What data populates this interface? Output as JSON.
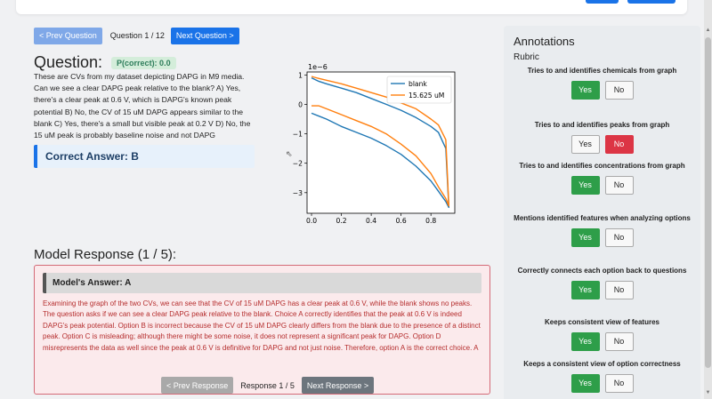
{
  "question_nav": {
    "prev_label": "< Prev Question",
    "counter": "Question 1 / 12",
    "next_label": "Next Question >"
  },
  "question": {
    "heading": "Question:",
    "p_correct": "P(correct): 0.0",
    "text": "These are CVs from my dataset depicting DAPG in M9 media. Can we see a clear DAPG peak relative to the blank? A) Yes, there's a clear peak at 0.6 V, which is DAPG's known peak potential B) No, the CV of 15 uM DAPG appears similar to the blank C) Yes, there's a small but visible peak at 0.2 V D) No, the 15 uM peak is probably baseline noise and not DAPG",
    "correct_answer": "Correct Answer: B"
  },
  "chart_data": {
    "type": "line",
    "offset_label": "1e−6",
    "xlim": [
      -0.03,
      0.96
    ],
    "ylim": [
      -3.7,
      1.1
    ],
    "x_ticks": [
      "0.0",
      "0.2",
      "0.4",
      "0.6",
      "0.8"
    ],
    "y_ticks": [
      "1",
      "0",
      "−1",
      "−2",
      "−3"
    ],
    "legend_position": "top-right",
    "series": [
      {
        "name": "blank",
        "color": "#1f77b4",
        "x": [
          0.0,
          0.05,
          0.1,
          0.2,
          0.3,
          0.4,
          0.5,
          0.6,
          0.7,
          0.8,
          0.85,
          0.9,
          0.92,
          0.9,
          0.85,
          0.8,
          0.7,
          0.6,
          0.5,
          0.4,
          0.3,
          0.2,
          0.1,
          0.05,
          0.02,
          0.0
        ],
        "y": [
          -0.3,
          -0.4,
          -0.5,
          -0.75,
          -0.95,
          -1.15,
          -1.4,
          -1.7,
          -2.1,
          -2.6,
          -2.95,
          -3.3,
          -3.5,
          -1.5,
          -0.95,
          -0.75,
          -0.45,
          -0.2,
          0.0,
          0.2,
          0.4,
          0.55,
          0.7,
          0.78,
          0.85,
          0.9
        ]
      },
      {
        "name": "15.625 uM",
        "color": "#ff7f0e",
        "x": [
          0.0,
          0.05,
          0.1,
          0.2,
          0.3,
          0.4,
          0.5,
          0.6,
          0.7,
          0.8,
          0.85,
          0.9,
          0.92,
          0.9,
          0.85,
          0.8,
          0.7,
          0.6,
          0.5,
          0.4,
          0.3,
          0.2,
          0.1,
          0.05,
          0.02,
          0.0
        ],
        "y": [
          -0.05,
          -0.05,
          -0.15,
          -0.35,
          -0.55,
          -0.75,
          -1.0,
          -1.35,
          -1.75,
          -2.35,
          -2.8,
          -3.2,
          -3.45,
          -1.2,
          -0.7,
          -0.5,
          -0.15,
          0.05,
          0.25,
          0.4,
          0.55,
          0.7,
          0.82,
          0.88,
          0.92,
          0.95
        ]
      }
    ]
  },
  "response": {
    "heading": "Model Response (1 / 5):",
    "model_answer": "Model's Answer: A",
    "text": "Examining the graph of the two CVs, we can see that the CV of 15 uM DAPG has a clear peak at 0.6 V, while the blank shows no peaks. The question asks if we can see a clear DAPG peak relative to the blank. Choice A correctly identifies that the peak at 0.6 V is indeed DAPG's peak potential. Option B is incorrect because the CV of 15 uM DAPG clearly differs from the blank due to the presence of a distinct peak. Option C is misleading; although there might be some noise, it does not represent a significant peak for DAPG. Option D misrepresents the data as well since the peak at 0.6 V is definitive for DAPG and not just noise. Therefore, option A is the correct choice. A",
    "prev_label": "< Prev Response",
    "counter": "Response 1 / 5",
    "next_label": "Next Response >"
  },
  "annotations": {
    "title": "Annotations",
    "subtitle": "Rubric",
    "yes_label": "Yes",
    "no_label": "No",
    "criteria": [
      {
        "label": "Tries to and identifies chemicals from graph",
        "selected": "yes"
      },
      {
        "label": "Tries to and identifies peaks from graph",
        "selected": "no"
      },
      {
        "label": "Tries to and identifies concentrations from graph",
        "selected": "yes"
      },
      {
        "label": "Mentions identified features when analyzing options",
        "selected": "yes"
      },
      {
        "label": "Correctly connects each option back to questions",
        "selected": "yes"
      },
      {
        "label": "Keeps consistent view of features",
        "selected": "yes"
      },
      {
        "label": "Keeps a consistent view of option correctness",
        "selected": "yes"
      }
    ]
  }
}
